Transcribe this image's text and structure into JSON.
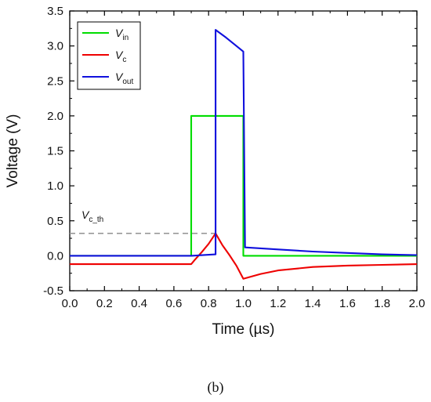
{
  "chart_data": {
    "type": "line",
    "xlabel": "Time (µs)",
    "ylabel": "Voltage (V)",
    "xlim": [
      0.0,
      2.0
    ],
    "ylim": [
      -0.5,
      3.5
    ],
    "xticks": [
      "0.0",
      "0.2",
      "0.4",
      "0.6",
      "0.8",
      "1.0",
      "1.2",
      "1.4",
      "1.6",
      "1.8",
      "2.0"
    ],
    "yticks": [
      "-0.5",
      "0.0",
      "0.5",
      "1.0",
      "1.5",
      "2.0",
      "2.5",
      "3.0",
      "3.5"
    ],
    "grid": false,
    "legend_position": "top-left",
    "series": [
      {
        "name": "V_in",
        "name_main": "V",
        "name_sub": "in",
        "color": "#00dd00",
        "x": [
          0.0,
          0.7,
          0.7,
          1.0,
          1.0,
          2.0
        ],
        "y": [
          0.0,
          0.0,
          2.0,
          2.0,
          0.0,
          0.0
        ]
      },
      {
        "name": "V_c",
        "name_main": "V",
        "name_sub": "c",
        "color": "#ee0000",
        "x": [
          0.0,
          0.7,
          0.72,
          0.76,
          0.8,
          0.84,
          0.88,
          0.92,
          0.96,
          1.0,
          1.1,
          1.2,
          1.4,
          1.6,
          1.8,
          2.0
        ],
        "y": [
          -0.12,
          -0.12,
          -0.06,
          0.05,
          0.17,
          0.32,
          0.15,
          0.01,
          -0.14,
          -0.33,
          -0.26,
          -0.21,
          -0.16,
          -0.14,
          -0.13,
          -0.12
        ]
      },
      {
        "name": "V_out",
        "name_main": "V",
        "name_sub": "out",
        "color": "#1010dd",
        "x": [
          0.0,
          0.7,
          0.84,
          0.84,
          0.9,
          0.95,
          1.0,
          1.01,
          1.2,
          1.4,
          1.6,
          1.8,
          2.0
        ],
        "y": [
          0.0,
          0.0,
          0.02,
          3.23,
          3.12,
          3.02,
          2.92,
          0.12,
          0.09,
          0.06,
          0.04,
          0.02,
          0.01
        ]
      }
    ],
    "annotations": [
      {
        "label": "V_c_th",
        "label_main": "V",
        "label_sub": "c_th",
        "value": 0.32,
        "x_range": [
          0.0,
          0.84
        ],
        "color": "#999999",
        "style": "dashed"
      }
    ]
  },
  "caption": "(b)"
}
